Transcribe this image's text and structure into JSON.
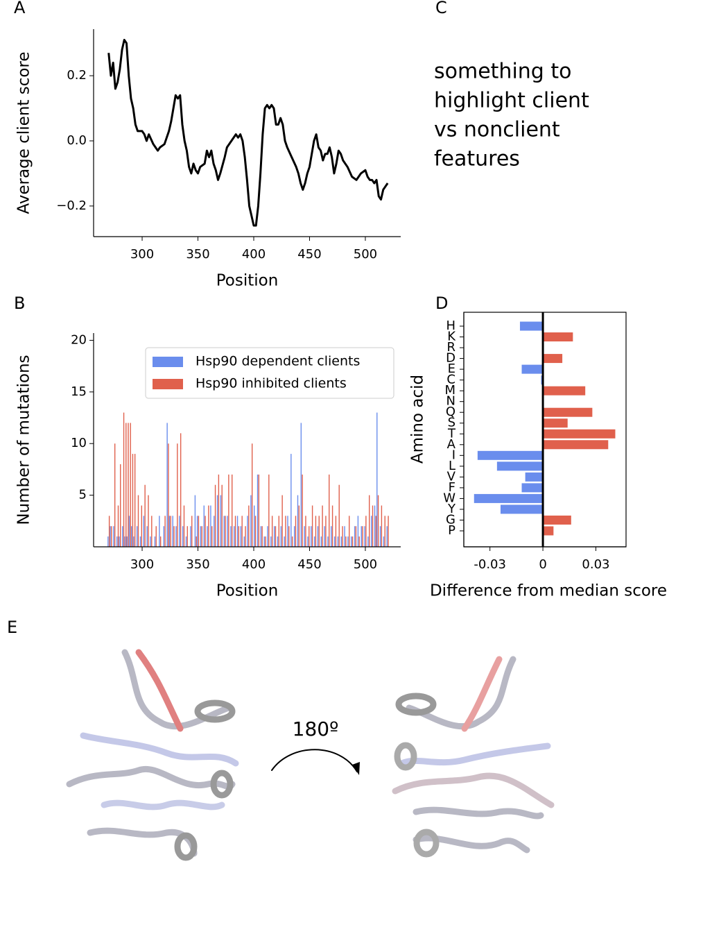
{
  "chart_data": [
    {
      "type": "line",
      "panel_label": "A",
      "x_label": "Position",
      "y_label": "Average client score",
      "x": [
        270,
        272,
        274,
        276,
        278,
        280,
        282,
        284,
        286,
        288,
        290,
        292,
        294,
        296,
        300,
        302,
        304,
        306,
        310,
        312,
        314,
        316,
        320,
        324,
        326,
        328,
        330,
        332,
        334,
        336,
        338,
        340,
        342,
        344,
        346,
        348,
        350,
        352,
        356,
        358,
        360,
        362,
        364,
        366,
        368,
        370,
        374,
        376,
        380,
        384,
        386,
        388,
        390,
        392,
        394,
        396,
        398,
        400,
        402,
        404,
        406,
        408,
        410,
        412,
        414,
        416,
        418,
        420,
        422,
        424,
        426,
        428,
        430,
        434,
        438,
        440,
        442,
        444,
        446,
        448,
        450,
        452,
        454,
        456,
        458,
        460,
        462,
        464,
        466,
        468,
        470,
        472,
        474,
        476,
        478,
        480,
        484,
        488,
        492,
        496,
        500,
        502,
        504,
        506,
        508,
        510,
        512,
        514,
        516,
        518,
        520
      ],
      "values": [
        0.27,
        0.2,
        0.24,
        0.16,
        0.18,
        0.22,
        0.28,
        0.31,
        0.3,
        0.2,
        0.13,
        0.1,
        0.05,
        0.03,
        0.03,
        0.02,
        0.0,
        0.02,
        -0.01,
        -0.02,
        -0.03,
        -0.02,
        -0.01,
        0.03,
        0.06,
        0.1,
        0.14,
        0.13,
        0.14,
        0.05,
        0.0,
        -0.03,
        -0.08,
        -0.1,
        -0.07,
        -0.09,
        -0.1,
        -0.08,
        -0.07,
        -0.03,
        -0.05,
        -0.03,
        -0.07,
        -0.09,
        -0.12,
        -0.1,
        -0.05,
        -0.02,
        0.0,
        0.02,
        0.01,
        0.02,
        0.0,
        -0.05,
        -0.12,
        -0.2,
        -0.23,
        -0.26,
        -0.26,
        -0.2,
        -0.1,
        0.02,
        0.1,
        0.11,
        0.1,
        0.11,
        0.1,
        0.05,
        0.05,
        0.07,
        0.05,
        0.0,
        -0.02,
        -0.05,
        -0.08,
        -0.1,
        -0.13,
        -0.15,
        -0.13,
        -0.1,
        -0.08,
        -0.04,
        0.0,
        0.02,
        -0.02,
        -0.03,
        -0.06,
        -0.04,
        -0.04,
        -0.02,
        -0.05,
        -0.1,
        -0.07,
        -0.03,
        -0.04,
        -0.06,
        -0.08,
        -0.11,
        -0.12,
        -0.1,
        -0.09,
        -0.11,
        -0.12,
        -0.12,
        -0.13,
        -0.12,
        -0.17,
        -0.18,
        -0.15,
        -0.14,
        -0.13
      ],
      "color": "#000000",
      "xlim": [
        256.5,
        531.7
      ],
      "xticks": [
        300,
        350,
        400,
        450,
        500
      ],
      "ylim": [
        -0.294,
        0.343
      ],
      "yticks": [
        {
          "value": -0.2,
          "label": "−0.2"
        },
        {
          "value": 0,
          "label": "0.0"
        },
        {
          "value": 0.2,
          "label": "0.2"
        }
      ]
    },
    {
      "type": "bar",
      "panel_label": "B",
      "x_label": "Position",
      "y_label": "Number of mutations",
      "legend": "upper right",
      "x": [
        270,
        272,
        275,
        278,
        280,
        283,
        285,
        287,
        289,
        291,
        293,
        296,
        299,
        302,
        305,
        308,
        312,
        316,
        320,
        323,
        325,
        328,
        331,
        334,
        337,
        340,
        344,
        348,
        350,
        353,
        356,
        359,
        362,
        365,
        368,
        371,
        374,
        377,
        380,
        383,
        386,
        389,
        392,
        395,
        398,
        401,
        404,
        407,
        410,
        413,
        416,
        419,
        422,
        425,
        428,
        431,
        434,
        437,
        440,
        443,
        446,
        449,
        452,
        455,
        458,
        461,
        464,
        467,
        470,
        473,
        476,
        479,
        482,
        485,
        488,
        491,
        494,
        497,
        500,
        503,
        506,
        509,
        511,
        514,
        517,
        520
      ],
      "series": [
        {
          "name": "Hsp90 dependent clients",
          "color": "#6a8ded",
          "values": [
            1,
            2,
            2,
            1,
            1,
            2,
            1,
            1,
            3,
            2,
            1,
            2,
            1,
            3,
            2,
            1,
            1,
            3,
            2,
            12,
            3,
            3,
            2,
            3,
            2,
            1,
            2,
            5,
            3,
            2,
            4,
            2,
            4,
            3,
            5,
            5,
            3,
            3,
            2,
            2,
            3,
            2,
            1,
            3,
            5,
            4,
            7,
            2,
            1,
            2,
            1,
            2,
            1,
            2,
            1,
            3,
            9,
            2,
            5,
            12,
            2,
            1,
            2,
            1,
            2,
            1,
            2,
            1,
            2,
            1,
            1,
            1,
            2,
            1,
            1,
            2,
            3,
            2,
            2,
            1,
            3,
            4,
            13,
            2,
            1,
            2
          ]
        },
        {
          "name": "Hsp90 inhibited clients",
          "color": "#e0604c",
          "values": [
            3,
            2,
            10,
            4,
            8,
            13,
            12,
            12,
            12,
            9,
            9,
            5,
            4,
            6,
            5,
            3,
            2,
            1,
            3,
            10,
            3,
            2,
            10,
            11,
            4,
            2,
            3,
            1,
            3,
            2,
            3,
            4,
            2,
            6,
            7,
            6,
            3,
            7,
            7,
            3,
            2,
            3,
            2,
            4,
            10,
            3,
            7,
            2,
            1,
            7,
            3,
            2,
            3,
            5,
            3,
            2,
            1,
            3,
            4,
            7,
            3,
            2,
            4,
            3,
            3,
            4,
            3,
            7,
            4,
            3,
            6,
            2,
            1,
            3,
            1,
            2,
            1,
            2,
            3,
            5,
            4,
            3,
            5,
            4,
            3,
            3
          ]
        }
      ],
      "xlim": [
        256.5,
        531.7
      ],
      "xticks": [
        300,
        350,
        400,
        450,
        500
      ],
      "ylim": [
        0,
        20.7
      ],
      "yticks": [
        5,
        10,
        15,
        20
      ]
    },
    {
      "type": "barh",
      "panel_label": "D",
      "x_label": "Difference from median score",
      "y_label": "Amino acid",
      "categories": [
        "H",
        "K",
        "R",
        "D",
        "E",
        "C",
        "M",
        "N",
        "Q",
        "S",
        "T",
        "A",
        "I",
        "L",
        "V",
        "F",
        "W",
        "Y",
        "G",
        "P"
      ],
      "values": [
        -0.013,
        0.017,
        0,
        0.011,
        -0.012,
        -0.001,
        0.024,
        0,
        0.028,
        0.014,
        0.041,
        0.037,
        -0.037,
        -0.026,
        -0.01,
        -0.012,
        -0.039,
        -0.024,
        0.016,
        0.006
      ],
      "negative_color": "#6a8ded",
      "positive_color": "#e0604c",
      "zero_line": true,
      "xlim": [
        -0.0448,
        0.0471
      ],
      "xticks": [
        -0.03,
        0,
        0.03
      ]
    }
  ],
  "panel_c": {
    "panel_label": "C",
    "lines": [
      "something to",
      "highlight client",
      "vs nonclient",
      "features"
    ]
  },
  "panel_e": {
    "panel_label": "E",
    "rotation_label": "180º"
  }
}
